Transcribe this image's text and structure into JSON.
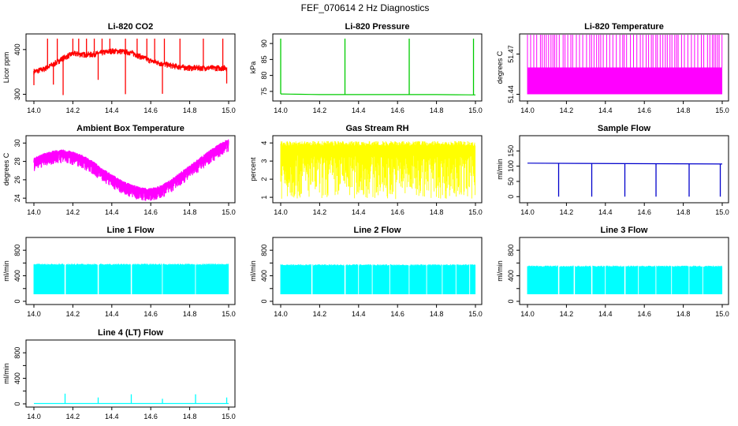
{
  "figure_title": "FEF_070614  2 Hz Diagnostics",
  "chart_data": [
    {
      "type": "line",
      "title": "Li-820 CO2",
      "ylabel": "Licor ppm",
      "color": "#ff0000",
      "xlim": [
        14.0,
        15.0
      ],
      "ylim": [
        285,
        435
      ],
      "y_ticks": [
        300,
        400
      ],
      "y_tick_labels": [
        "300",
        "400"
      ],
      "series": [
        {
          "values": [
            [
              14.0,
              352
            ],
            [
              14.05,
              357
            ],
            [
              14.1,
              368
            ],
            [
              14.15,
              382
            ],
            [
              14.2,
              392
            ],
            [
              14.25,
              390
            ],
            [
              14.3,
              390
            ],
            [
              14.35,
              394
            ],
            [
              14.4,
              398
            ],
            [
              14.45,
              397
            ],
            [
              14.5,
              394
            ],
            [
              14.55,
              385
            ],
            [
              14.6,
              376
            ],
            [
              14.65,
              370
            ],
            [
              14.7,
              366
            ],
            [
              14.75,
              362
            ],
            [
              14.8,
              360
            ],
            [
              14.85,
              360
            ],
            [
              14.9,
              360
            ],
            [
              14.95,
              360
            ],
            [
              14.99,
              360
            ]
          ]
        }
      ],
      "spikes_up": [
        14.07,
        14.12,
        14.2,
        14.23,
        14.27,
        14.31,
        14.35,
        14.39,
        14.47,
        14.53,
        14.58,
        14.62,
        14.67,
        14.75,
        14.87,
        14.97
      ],
      "spikes_down": [
        14.0,
        14.1,
        14.15,
        14.33,
        14.47,
        14.66,
        14.99
      ]
    },
    {
      "type": "line",
      "title": "Li-820 Pressure",
      "ylabel": "kPa",
      "color": "#00cc00",
      "xlim": [
        14.0,
        15.0
      ],
      "ylim": [
        72,
        93
      ],
      "y_ticks": [
        75,
        80,
        85,
        90
      ],
      "y_tick_labels": [
        "75",
        "80",
        "85",
        "90"
      ],
      "series": [
        {
          "values": [
            [
              14.0,
              74.2
            ],
            [
              14.2,
              74.0
            ],
            [
              14.4,
              74.0
            ],
            [
              14.6,
              74.0
            ],
            [
              14.8,
              74.0
            ],
            [
              15.0,
              73.9
            ]
          ]
        }
      ],
      "spikes_up": [
        14.0,
        14.33,
        14.66,
        14.99
      ]
    },
    {
      "type": "area",
      "title": "Li-820 Temperature",
      "ylabel": "degrees C",
      "color": "#ff00ff",
      "xlim": [
        14.0,
        15.0
      ],
      "ylim": [
        51.435,
        51.485
      ],
      "y_ticks": [
        51.44,
        51.47
      ],
      "y_tick_labels": [
        "51.44",
        "51.47"
      ],
      "series": [
        {
          "band": [
            51.44,
            51.46
          ],
          "spike_top": 51.485
        }
      ]
    },
    {
      "type": "line",
      "title": "Ambient Box Temperature",
      "ylabel": "degrees C",
      "color": "#ff00ff",
      "xlim": [
        14.0,
        15.0
      ],
      "ylim": [
        23.5,
        30.8
      ],
      "y_ticks": [
        24,
        26,
        28,
        30
      ],
      "y_tick_labels": [
        "24",
        "26",
        "28",
        "30"
      ],
      "series": [
        {
          "values": [
            [
              14.0,
              28.1
            ],
            [
              14.05,
              28.6
            ],
            [
              14.1,
              28.9
            ],
            [
              14.15,
              29.0
            ],
            [
              14.2,
              28.8
            ],
            [
              14.25,
              28.4
            ],
            [
              14.3,
              27.8
            ],
            [
              14.35,
              27.0
            ],
            [
              14.4,
              26.3
            ],
            [
              14.45,
              25.7
            ],
            [
              14.5,
              25.2
            ],
            [
              14.55,
              24.9
            ],
            [
              14.6,
              24.8
            ],
            [
              14.65,
              25.1
            ],
            [
              14.7,
              25.7
            ],
            [
              14.75,
              26.5
            ],
            [
              14.8,
              27.3
            ],
            [
              14.85,
              28.1
            ],
            [
              14.9,
              28.9
            ],
            [
              14.95,
              29.6
            ],
            [
              15.0,
              30.2
            ]
          ]
        }
      ]
    },
    {
      "type": "area",
      "title": "Gas Stream RH",
      "ylabel": "percent",
      "color": "#ffff00",
      "xlim": [
        14.0,
        15.0
      ],
      "ylim": [
        0.7,
        4.4
      ],
      "y_ticks": [
        1,
        2,
        3,
        4
      ],
      "y_tick_labels": [
        "1",
        "2",
        "3",
        "4"
      ],
      "series": [
        {
          "band": [
            0.9,
            4.1
          ]
        }
      ]
    },
    {
      "type": "line",
      "title": "Sample Flow",
      "ylabel": "ml/min",
      "color": "#0000cc",
      "xlim": [
        14.0,
        15.0
      ],
      "ylim": [
        -20,
        200
      ],
      "y_ticks": [
        0,
        50,
        100,
        150
      ],
      "y_tick_labels": [
        "0",
        "50",
        "100",
        "150"
      ],
      "series": [
        {
          "values": [
            [
              14.0,
              110
            ],
            [
              15.0,
              107
            ]
          ]
        }
      ],
      "spikes_down": [
        14.16,
        14.33,
        14.5,
        14.66,
        14.83,
        14.99
      ]
    },
    {
      "type": "area",
      "title": "Line 1 Flow",
      "ylabel": "ml/min",
      "color": "#00ffff",
      "xlim": [
        14.0,
        15.0
      ],
      "ylim": [
        -50,
        1000
      ],
      "y_ticks": [
        0,
        200,
        400,
        600,
        800
      ],
      "y_tick_labels": [
        "0",
        "400",
        "800"
      ],
      "series": [
        {
          "band": [
            110,
            590
          ]
        }
      ],
      "gaps": [
        14.16,
        14.33,
        14.5,
        14.66,
        14.83
      ]
    },
    {
      "type": "area",
      "title": "Line 2 Flow",
      "ylabel": "ml/min",
      "color": "#00ffff",
      "xlim": [
        14.0,
        15.0
      ],
      "ylim": [
        -50,
        1000
      ],
      "y_ticks": [
        0,
        200,
        400,
        600,
        800
      ],
      "y_tick_labels": [
        "0",
        "400",
        "800"
      ],
      "series": [
        {
          "band": [
            110,
            580
          ]
        }
      ],
      "gaps": [
        14.16,
        14.33,
        14.4,
        14.47,
        14.56,
        14.66,
        14.75,
        14.83,
        14.9,
        14.97
      ]
    },
    {
      "type": "area",
      "title": "Line 3 Flow",
      "ylabel": "ml/min",
      "color": "#00ffff",
      "xlim": [
        14.0,
        15.0
      ],
      "ylim": [
        -50,
        1000
      ],
      "y_ticks": [
        0,
        200,
        400,
        600,
        800
      ],
      "y_tick_labels": [
        "0",
        "400",
        "800"
      ],
      "series": [
        {
          "band": [
            110,
            560
          ]
        }
      ],
      "gaps": [
        14.16,
        14.24,
        14.33,
        14.4,
        14.5,
        14.57,
        14.66,
        14.74,
        14.83,
        14.9
      ]
    },
    {
      "type": "line",
      "title": "Line 4 (LT) Flow",
      "ylabel": "ml/min",
      "color": "#00ffff",
      "xlim": [
        14.0,
        15.0
      ],
      "ylim": [
        -50,
        1000
      ],
      "y_ticks": [
        0,
        200,
        400,
        600,
        800
      ],
      "y_tick_labels": [
        "0",
        "400",
        "800"
      ],
      "series": [
        {
          "values": [
            [
              14.0,
              5
            ],
            [
              15.0,
              5
            ]
          ]
        }
      ],
      "spikes_up": [
        [
          14.16,
          160
        ],
        [
          14.33,
          100
        ],
        [
          14.5,
          150
        ],
        [
          14.66,
          80
        ],
        [
          14.83,
          150
        ],
        [
          14.99,
          100
        ]
      ]
    }
  ],
  "x_tick_labels": [
    "14.0",
    "14.2",
    "14.4",
    "14.6",
    "14.8",
    "15.0"
  ]
}
